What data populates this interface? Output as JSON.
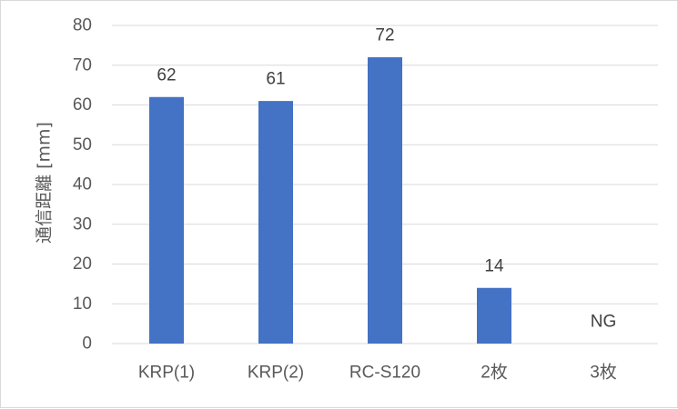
{
  "chart_data": {
    "type": "bar",
    "categories": [
      "KRP(1)",
      "KRP(2)",
      "RC-S120",
      "2枚",
      "3枚"
    ],
    "values": [
      62,
      61,
      72,
      14,
      null
    ],
    "data_labels": [
      "62",
      "61",
      "72",
      "14",
      "NG"
    ],
    "ylabel": "通信距離 [mm]",
    "xlabel": "",
    "ylim": [
      0,
      80
    ],
    "yticks": [
      0,
      10,
      20,
      30,
      40,
      50,
      60,
      70,
      80
    ],
    "grid": true,
    "bar_color": "#4472c4",
    "gridline_color": "#d9d9d9"
  }
}
